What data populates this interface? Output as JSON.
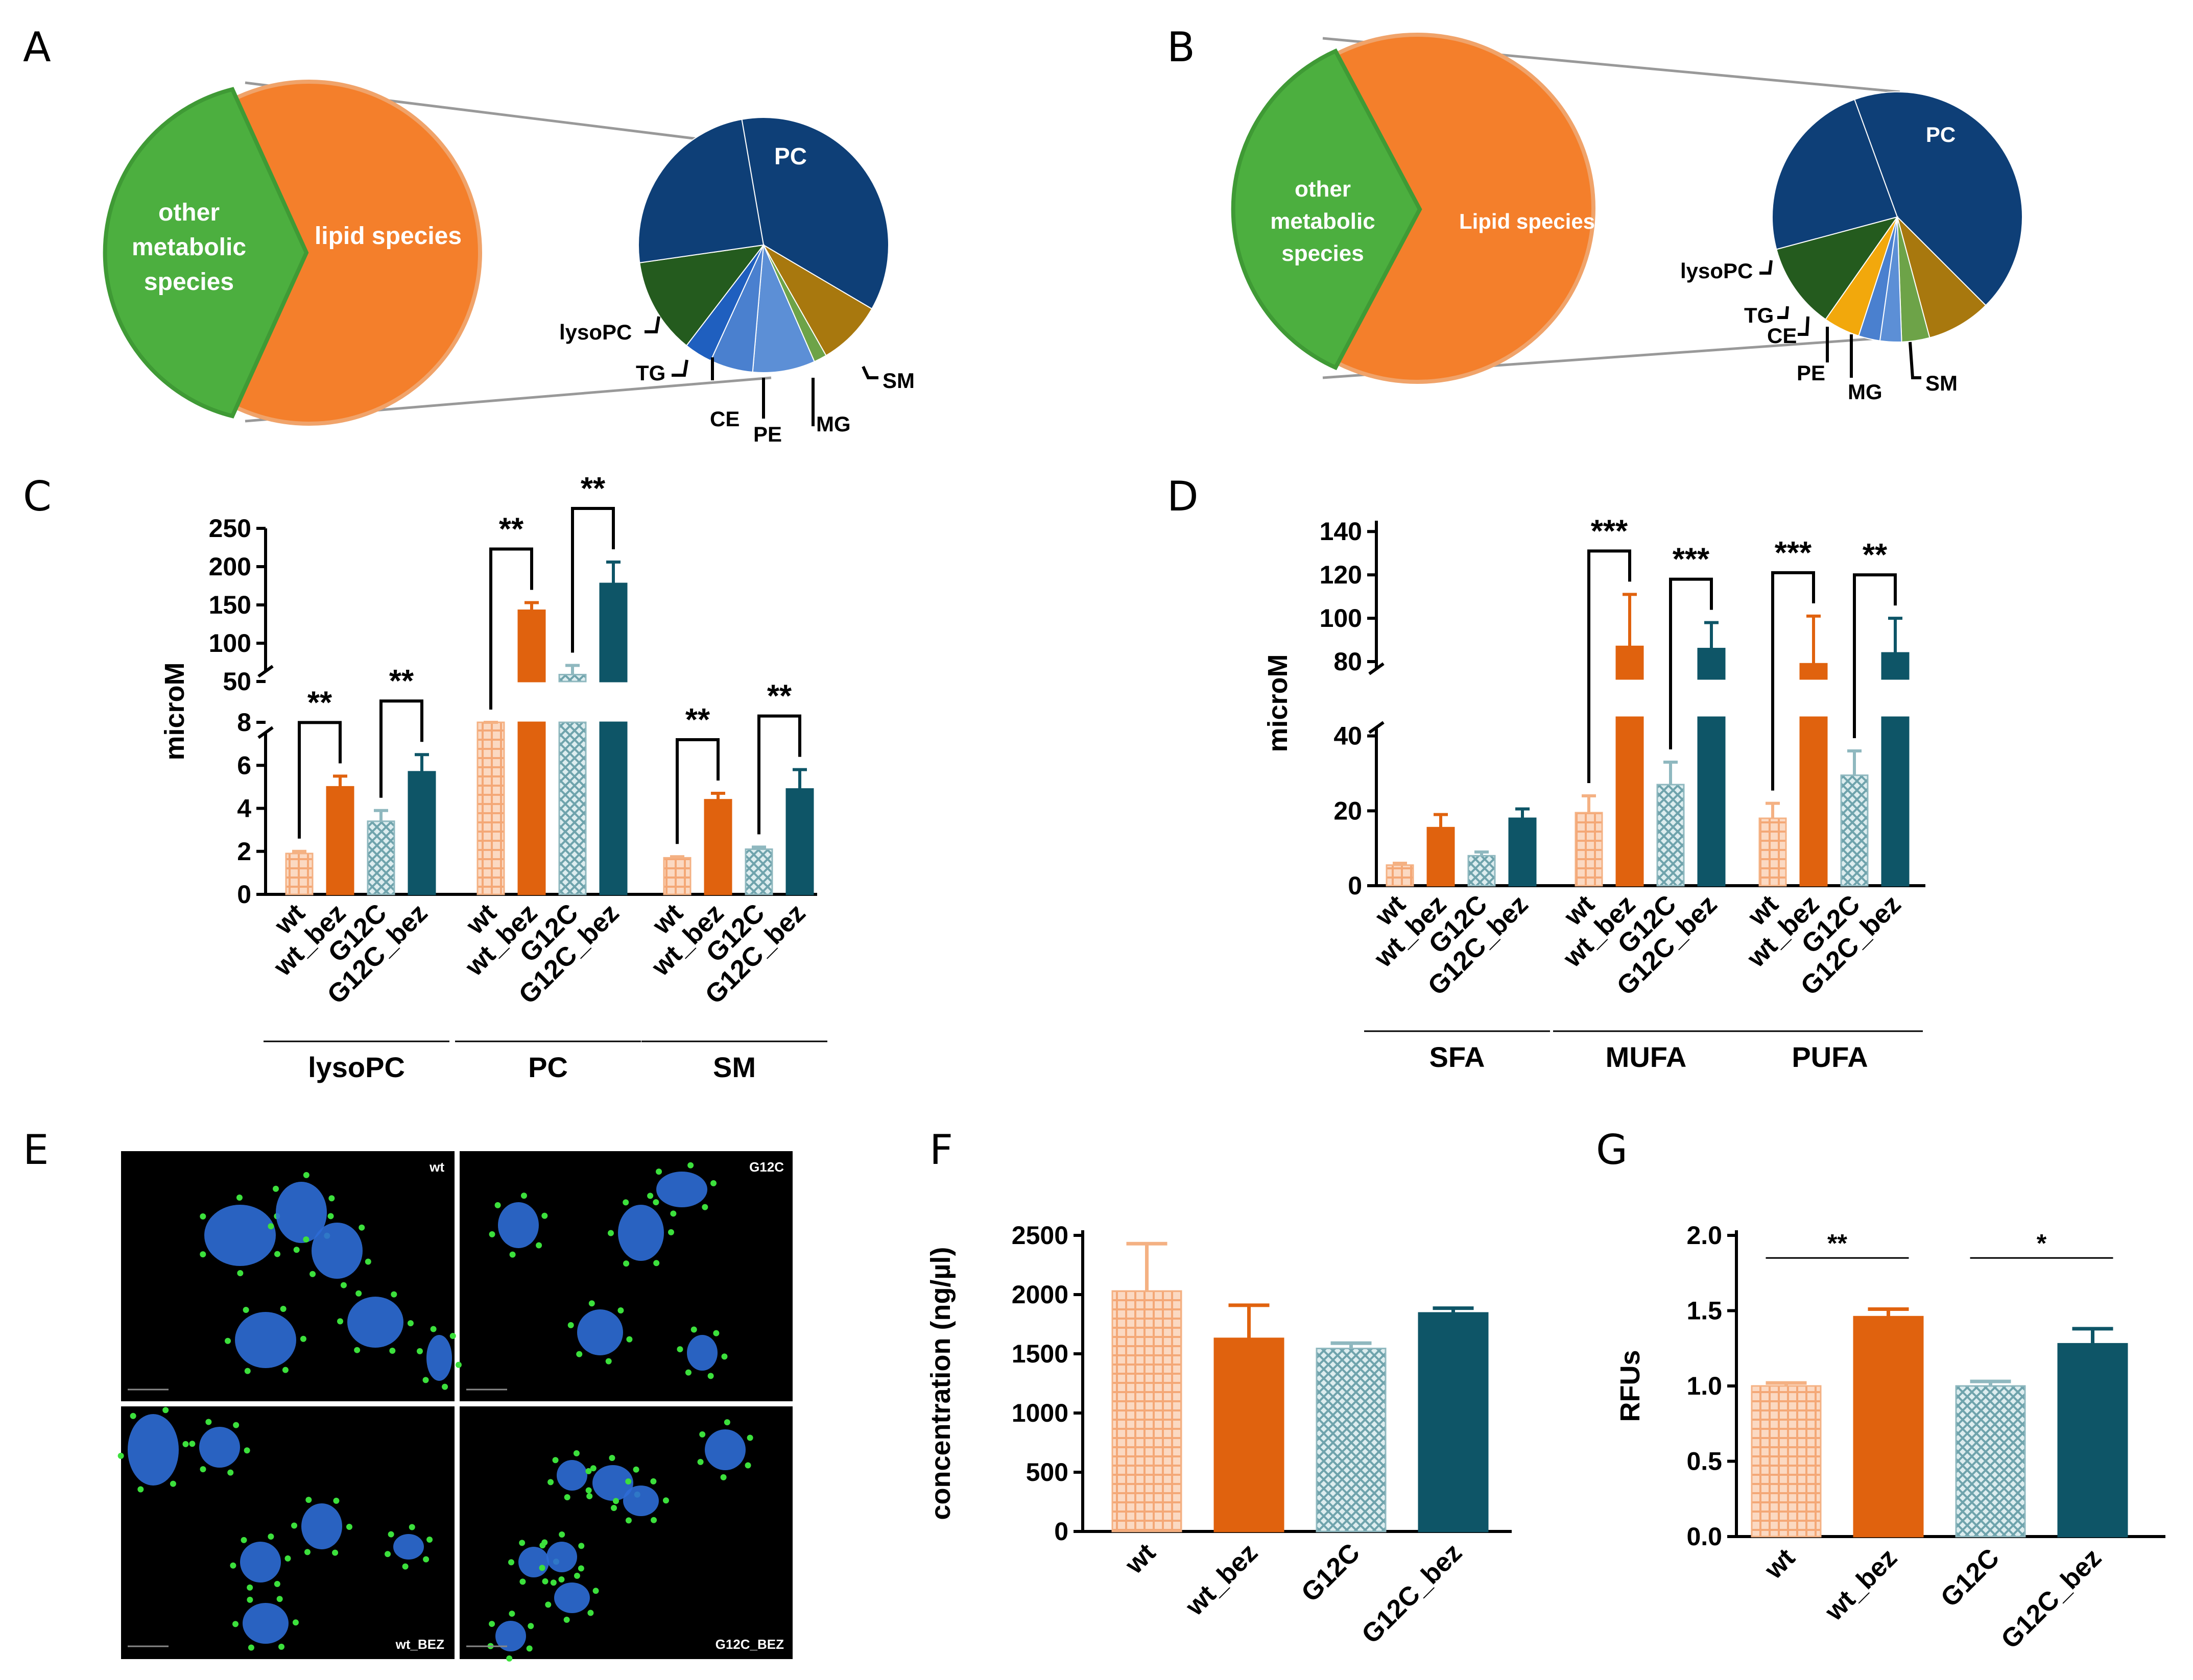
{
  "colors": {
    "wt": "#F4B183",
    "wt_bez": "#E0620E",
    "G12C": "#8FB8BF",
    "G12C_bez": "#0E5567",
    "other": "#4CAF3F",
    "lipid": "#F47F2B",
    "PC": "#0E3F77",
    "lysoPC": "#245B1E",
    "TG": "#1F5FBF",
    "CE": "#4A80CF",
    "PE": "#5C8FD6",
    "MG": "#6DA348",
    "SM": "#A8780E",
    "TG_B": "#F2A80C"
  },
  "panels": {
    "A": "A",
    "B": "B",
    "C": "C",
    "D": "D",
    "E": "E",
    "F": "F",
    "G": "G"
  },
  "pieA": {
    "other_label": [
      "other",
      "metabolic",
      "species"
    ],
    "lipid_label": "lipid species",
    "pc_label": "PC",
    "callouts": [
      "lysoPC",
      "TG",
      "CE",
      "PE",
      "MG",
      "SM"
    ]
  },
  "pieB": {
    "other_label": [
      "other",
      "metabolic",
      "species"
    ],
    "lipid_label": "Lipid species",
    "pc_label": "PC",
    "callouts": [
      "lysoPC",
      "TG",
      "CE",
      "PE",
      "MG",
      "SM"
    ]
  },
  "micro": {
    "labels": [
      "wt",
      "G12C",
      "wt_BEZ",
      "G12C_BEZ"
    ]
  },
  "chart_data": [
    {
      "id": "C",
      "type": "bar",
      "ylabel": "microM",
      "categories": [
        "wt",
        "wt_bez",
        "G12C",
        "G12C_bez"
      ],
      "groups": [
        "lysoPC",
        "PC",
        "SM"
      ],
      "broken_axis": {
        "lower": [
          0,
          8
        ],
        "upper": [
          50,
          250
        ]
      },
      "lower_ticks": [
        "0",
        "2",
        "4",
        "6",
        "8"
      ],
      "upper_ticks": [
        "50",
        "100",
        "150",
        "200",
        "250"
      ],
      "series": [
        {
          "group": "lysoPC",
          "values": [
            1.9,
            5.0,
            3.4,
            5.7
          ],
          "errors": [
            0.1,
            0.5,
            0.5,
            0.8
          ]
        },
        {
          "group": "PC",
          "values": [
            35,
            143,
            59,
            178
          ],
          "errors": [
            2,
            10,
            12,
            28
          ]
        },
        {
          "group": "SM",
          "values": [
            1.7,
            4.4,
            2.1,
            4.9
          ],
          "errors": [
            0.05,
            0.3,
            0.1,
            0.9
          ]
        }
      ],
      "significance": [
        {
          "group": "lysoPC",
          "pair": "wt vs wt_bez",
          "label": "**"
        },
        {
          "group": "lysoPC",
          "pair": "G12C vs G12C_bez",
          "label": "**"
        },
        {
          "group": "PC",
          "pair": "wt vs wt_bez",
          "label": "**"
        },
        {
          "group": "PC",
          "pair": "G12C vs G12C_bez",
          "label": "**"
        },
        {
          "group": "SM",
          "pair": "wt vs wt_bez",
          "label": "**"
        },
        {
          "group": "SM",
          "pair": "G12C vs G12C_bez",
          "label": "**"
        }
      ]
    },
    {
      "id": "D",
      "type": "bar",
      "ylabel": "microM",
      "categories": [
        "wt",
        "wt_bez",
        "G12C",
        "G12C_bez"
      ],
      "groups": [
        "SFA",
        "MUFA",
        "PUFA"
      ],
      "broken_axis": {
        "lower": [
          0,
          45
        ],
        "upper": [
          72,
          145
        ]
      },
      "lower_ticks": [
        "0",
        "20",
        "40"
      ],
      "upper_ticks": [
        "80",
        "100",
        "120",
        "140"
      ],
      "series": [
        {
          "group": "SFA",
          "values": [
            5.5,
            15.5,
            8.0,
            18.0
          ],
          "errors": [
            0.5,
            3.5,
            1.0,
            2.5
          ]
        },
        {
          "group": "MUFA",
          "values": [
            19.5,
            87,
            27,
            86
          ],
          "errors": [
            4.5,
            24,
            6,
            12
          ]
        },
        {
          "group": "PUFA",
          "values": [
            18.0,
            79,
            29.5,
            84
          ],
          "errors": [
            4.0,
            22,
            6.5,
            16
          ]
        }
      ],
      "significance": [
        {
          "group": "MUFA",
          "pair": "wt vs wt_bez",
          "label": "***"
        },
        {
          "group": "MUFA",
          "pair": "G12C vs G12C_bez",
          "label": "***"
        },
        {
          "group": "PUFA",
          "pair": "wt vs wt_bez",
          "label": "***"
        },
        {
          "group": "PUFA",
          "pair": "G12C vs G12C_bez",
          "label": "**"
        }
      ]
    },
    {
      "id": "F",
      "type": "bar",
      "ylabel": "concentration (ng/µl)",
      "categories": [
        "wt",
        "wt_bez",
        "G12C",
        "G12C_bez"
      ],
      "values": [
        2030,
        1630,
        1545,
        1845
      ],
      "errors": [
        400,
        280,
        45,
        40
      ],
      "ylim": [
        0,
        2500
      ],
      "yticks": [
        "0",
        "500",
        "1000",
        "1500",
        "2000",
        "2500"
      ]
    },
    {
      "id": "G",
      "type": "bar",
      "ylabel": "RFUs",
      "categories": [
        "wt",
        "wt_bez",
        "G12C",
        "G12C_bez"
      ],
      "values": [
        1.0,
        1.46,
        1.0,
        1.28
      ],
      "errors": [
        0.02,
        0.05,
        0.03,
        0.1
      ],
      "ylim": [
        0,
        2.0
      ],
      "yticks": [
        "0.0",
        "0.5",
        "1.0",
        "1.5",
        "2.0"
      ],
      "significance": [
        {
          "pair": "wt vs wt_bez",
          "label": "**"
        },
        {
          "pair": "G12C vs G12C_bez",
          "label": "*"
        }
      ]
    }
  ]
}
